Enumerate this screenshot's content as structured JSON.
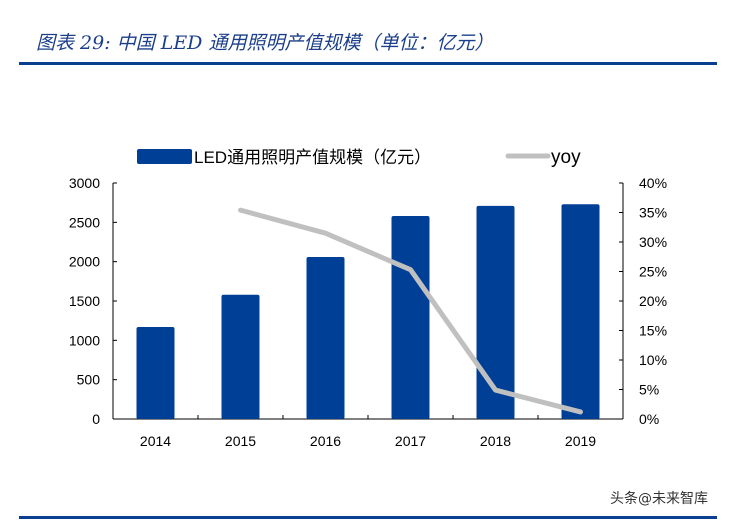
{
  "title": "图表 29:  中国 LED 通用照明产值规模（单位：亿元）",
  "watermark": "头条@未来智库",
  "chart_data": {
    "type": "bar+line",
    "categories": [
      "2014",
      "2015",
      "2016",
      "2017",
      "2018",
      "2019"
    ],
    "series": [
      {
        "name": "LED通用照明产值规模（亿元）",
        "type": "bar",
        "axis": "left",
        "color": "#003f96",
        "values": [
          1170,
          1580,
          2060,
          2580,
          2710,
          2730
        ]
      },
      {
        "name": "yoy",
        "type": "line",
        "axis": "right",
        "color": "#c0c0c0",
        "values": [
          null,
          35.4,
          31.5,
          25.3,
          4.9,
          1.2
        ]
      }
    ],
    "ylim_left": [
      0,
      3000
    ],
    "yticks_left": [
      "0",
      "500",
      "1000",
      "1500",
      "2000",
      "2500",
      "3000"
    ],
    "ylim_right": [
      0,
      40
    ],
    "yticks_right": [
      "0%",
      "5%",
      "10%",
      "15%",
      "20%",
      "25%",
      "30%",
      "35%",
      "40%"
    ],
    "legend": "top",
    "grid": false
  }
}
